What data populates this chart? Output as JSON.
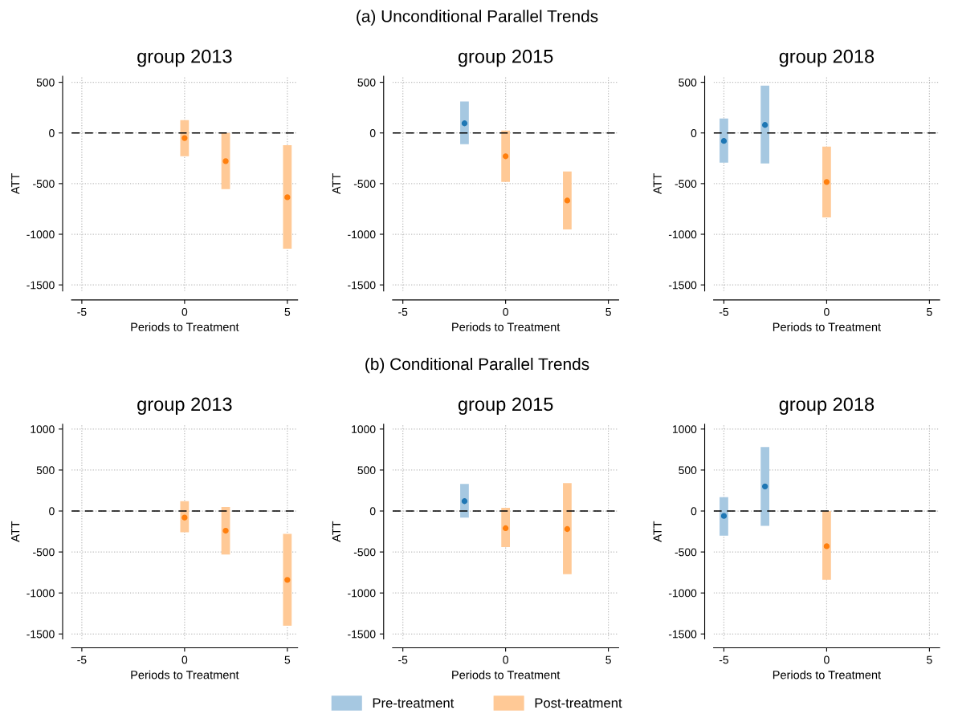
{
  "chart_data": [
    {
      "type": "bar",
      "title": "group 2013",
      "xlabel": "Periods to Treatment",
      "ylabel": "ATT",
      "annotations": [
        "(a) Unconditional Parallel Trends"
      ],
      "xlim": [
        -5.5,
        5.5
      ],
      "xticks": [
        -5,
        0,
        5
      ],
      "ylim": [
        -1560,
        560
      ],
      "yticks": [
        -1500,
        -1000,
        -500,
        0,
        500
      ],
      "grid": true,
      "ref_lines": [
        {
          "axis": "y",
          "value": 0,
          "line_style": "dashed",
          "color": "#000000"
        }
      ],
      "series": [
        {
          "color": "#ffc996",
          "x": [
            0,
            2,
            5
          ],
          "base": [
            -230,
            -555,
            -1143
          ],
          "values": [
            357,
            555,
            1023
          ]
        },
        {
          "type": "scatter",
          "color": "#ff7f0e",
          "x": [
            0,
            2,
            5
          ],
          "values": [
            -50,
            -278,
            -635
          ]
        }
      ]
    },
    {
      "type": "bar",
      "title": "group 2015",
      "xlabel": "Periods to Treatment",
      "ylabel": "ATT",
      "xlim": [
        -5.5,
        5.5
      ],
      "xticks": [
        -5,
        0,
        5
      ],
      "ylim": [
        -1560,
        560
      ],
      "yticks": [
        -1500,
        -1000,
        -500,
        0,
        500
      ],
      "grid": true,
      "ref_lines": [
        {
          "axis": "y",
          "value": 0,
          "line_style": "dashed",
          "color": "#000000"
        }
      ],
      "series": [
        {
          "color": "#a6c8e1",
          "x": [
            -2
          ],
          "base": [
            -111
          ],
          "values": [
            421
          ]
        },
        {
          "type": "scatter",
          "color": "#1f77b4",
          "x": [
            -2
          ],
          "values": [
            95
          ]
        },
        {
          "color": "#ffc996",
          "x": [
            0,
            3
          ],
          "base": [
            -484,
            -952
          ],
          "values": [
            508,
            571
          ]
        },
        {
          "type": "scatter",
          "color": "#ff7f0e",
          "x": [
            0,
            3
          ],
          "values": [
            -230,
            -667
          ]
        }
      ]
    },
    {
      "type": "bar",
      "title": "group 2018",
      "xlabel": "Periods to Treatment",
      "ylabel": "ATT",
      "xlim": [
        -5.5,
        5.5
      ],
      "xticks": [
        -5,
        0,
        5
      ],
      "ylim": [
        -1560,
        560
      ],
      "yticks": [
        -1500,
        -1000,
        -500,
        0,
        500
      ],
      "grid": true,
      "ref_lines": [
        {
          "axis": "y",
          "value": 0,
          "line_style": "dashed",
          "color": "#000000"
        }
      ],
      "series": [
        {
          "color": "#a6c8e1",
          "x": [
            -5,
            -3
          ],
          "base": [
            -294,
            -302
          ],
          "values": [
            437,
            770
          ]
        },
        {
          "type": "scatter",
          "color": "#1f77b4",
          "x": [
            -5,
            -3
          ],
          "values": [
            -79,
            79
          ]
        },
        {
          "color": "#ffc996",
          "x": [
            0
          ],
          "base": [
            -833
          ],
          "values": [
            698
          ]
        },
        {
          "type": "scatter",
          "color": "#ff7f0e",
          "x": [
            0
          ],
          "values": [
            -484
          ]
        }
      ]
    },
    {
      "type": "bar",
      "title": "group 2013",
      "xlabel": "Periods to Treatment",
      "ylabel": "ATT",
      "annotations": [
        "(b) Conditional Parallel Trends"
      ],
      "xlim": [
        -5.5,
        5.5
      ],
      "xticks": [
        -5,
        0,
        5
      ],
      "ylim": [
        -1560,
        1060
      ],
      "yticks": [
        -1500,
        -1000,
        -500,
        0,
        500,
        1000
      ],
      "grid": true,
      "ref_lines": [
        {
          "axis": "y",
          "value": 0,
          "line_style": "dashed",
          "color": "#000000"
        }
      ],
      "series": [
        {
          "color": "#ffc996",
          "x": [
            0,
            2,
            5
          ],
          "base": [
            -260,
            -530,
            -1400
          ],
          "values": [
            380,
            580,
            1120
          ]
        },
        {
          "type": "scatter",
          "color": "#ff7f0e",
          "x": [
            0,
            2,
            5
          ],
          "values": [
            -80,
            -240,
            -840
          ]
        }
      ]
    },
    {
      "type": "bar",
      "title": "group 2015",
      "xlabel": "Periods to Treatment",
      "ylabel": "ATT",
      "xlim": [
        -5.5,
        5.5
      ],
      "xticks": [
        -5,
        0,
        5
      ],
      "ylim": [
        -1560,
        1060
      ],
      "yticks": [
        -1500,
        -1000,
        -500,
        0,
        500,
        1000
      ],
      "grid": true,
      "ref_lines": [
        {
          "axis": "y",
          "value": 0,
          "line_style": "dashed",
          "color": "#000000"
        }
      ],
      "series": [
        {
          "color": "#a6c8e1",
          "x": [
            -2
          ],
          "base": [
            -80
          ],
          "values": [
            410
          ]
        },
        {
          "type": "scatter",
          "color": "#1f77b4",
          "x": [
            -2
          ],
          "values": [
            120
          ]
        },
        {
          "color": "#ffc996",
          "x": [
            0,
            3
          ],
          "base": [
            -440,
            -770
          ],
          "values": [
            480,
            1110
          ]
        },
        {
          "type": "scatter",
          "color": "#ff7f0e",
          "x": [
            0,
            3
          ],
          "values": [
            -210,
            -220
          ]
        }
      ]
    },
    {
      "type": "bar",
      "title": "group 2018",
      "xlabel": "Periods to Treatment",
      "ylabel": "ATT",
      "xlim": [
        -5.5,
        5.5
      ],
      "xticks": [
        -5,
        0,
        5
      ],
      "ylim": [
        -1560,
        1060
      ],
      "yticks": [
        -1500,
        -1000,
        -500,
        0,
        500,
        1000
      ],
      "grid": true,
      "legend": "bottom",
      "ref_lines": [
        {
          "axis": "y",
          "value": 0,
          "line_style": "dashed",
          "color": "#000000"
        }
      ],
      "series": [
        {
          "name": "Pre-treatment",
          "color": "#a6c8e1",
          "x": [
            -5,
            -3
          ],
          "base": [
            -300,
            -180
          ],
          "values": [
            470,
            960
          ]
        },
        {
          "type": "scatter",
          "color": "#1f77b4",
          "x": [
            -5,
            -3
          ],
          "values": [
            -60,
            300
          ]
        },
        {
          "name": "Post-treatment",
          "color": "#ffc996",
          "x": [
            0
          ],
          "base": [
            -840
          ],
          "values": [
            840
          ]
        },
        {
          "type": "scatter",
          "color": "#ff7f0e",
          "x": [
            0
          ],
          "values": [
            -430
          ]
        }
      ]
    }
  ]
}
